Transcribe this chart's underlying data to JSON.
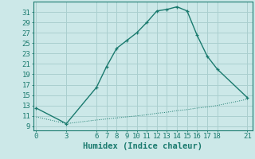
{
  "xlabel": "Humidex (Indice chaleur)",
  "bg_color": "#cce8e8",
  "grid_color": "#aacfcf",
  "line_color": "#1a7a6e",
  "curve1_x": [
    0,
    3,
    6,
    7,
    8,
    9,
    10,
    11,
    12,
    13,
    14,
    15,
    16,
    17,
    18,
    21
  ],
  "curve1_y": [
    12.5,
    9.5,
    16.5,
    20.5,
    24.0,
    25.5,
    27.0,
    29.0,
    31.2,
    31.5,
    32.0,
    31.2,
    26.5,
    22.5,
    20.0,
    14.5
  ],
  "curve2_x": [
    0,
    3,
    6,
    7,
    8,
    9,
    10,
    11,
    12,
    13,
    14,
    15,
    16,
    17,
    18,
    21
  ],
  "curve2_y": [
    10.8,
    9.5,
    10.2,
    10.4,
    10.6,
    10.8,
    11.0,
    11.2,
    11.5,
    11.7,
    12.0,
    12.2,
    12.5,
    12.7,
    13.0,
    14.2
  ],
  "xticks": [
    0,
    3,
    6,
    7,
    8,
    9,
    10,
    11,
    12,
    13,
    14,
    15,
    16,
    17,
    18,
    21
  ],
  "yticks": [
    9,
    11,
    13,
    15,
    17,
    19,
    21,
    23,
    25,
    27,
    29,
    31
  ],
  "xlim": [
    -0.3,
    21.5
  ],
  "ylim": [
    8.2,
    33.0
  ],
  "tick_fontsize": 6.5,
  "xlabel_fontsize": 7.5
}
